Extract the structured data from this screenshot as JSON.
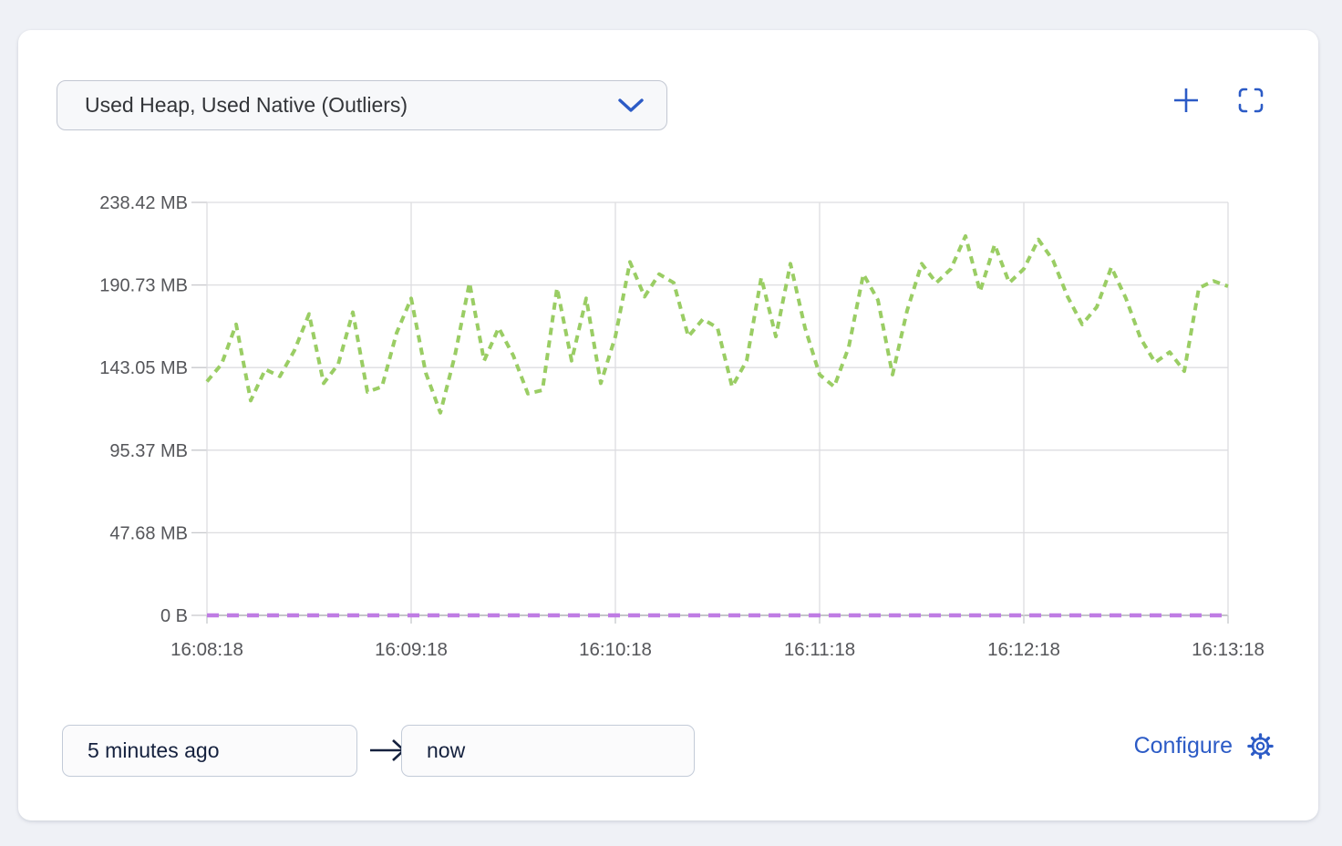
{
  "panel": {
    "metric_selector": {
      "value": "Used Heap, Used Native (Outliers)"
    },
    "actions": {
      "add_icon": "plus",
      "fullscreen_icon": "fullscreen-corners"
    },
    "time_range": {
      "from": "5 minutes ago",
      "to": "now"
    },
    "configure_label": "Configure"
  },
  "colors": {
    "accent_blue": "#2c5bc6",
    "heap_green": "#9acd64",
    "native_purple": "#bf7ce4",
    "grid_gray": "#dddde0",
    "axis_gray": "#b2b3b7",
    "tick_gray": "#c7c8cc",
    "tick_text": "#55565a",
    "navy_text": "#15213e"
  },
  "chart_data": {
    "type": "line",
    "title": "",
    "xlabel": "",
    "ylabel": "",
    "grid": true,
    "legend_position": "none",
    "ylim": [
      0,
      238.42
    ],
    "y_ticks": [
      "0 B",
      "47.68 MB",
      "95.37 MB",
      "143.05 MB",
      "190.73 MB",
      "238.42 MB"
    ],
    "y_tick_values_mb": [
      0,
      47.68,
      95.37,
      143.05,
      190.73,
      238.42
    ],
    "x_ticks": [
      "16:08:18",
      "16:09:18",
      "16:10:18",
      "16:11:18",
      "16:12:18",
      "16:13:18"
    ],
    "x_range_seconds": 300,
    "series": [
      {
        "name": "Used Heap (Outliers)",
        "unit": "MB",
        "color": "#9acd64",
        "line_style": "dashed",
        "dash": "8 6",
        "width": 4,
        "values": [
          135,
          145,
          168,
          124,
          142,
          138,
          153,
          174,
          134,
          145,
          175,
          129,
          132,
          163,
          183,
          140,
          117,
          150,
          192,
          147,
          166,
          150,
          128,
          130,
          189,
          147,
          183,
          134,
          161,
          204,
          184,
          197,
          192,
          161,
          171,
          166,
          132,
          147,
          195,
          161,
          203,
          166,
          139,
          132,
          155,
          197,
          182,
          139,
          176,
          203,
          192,
          200,
          219,
          187,
          214,
          192,
          200,
          217,
          205,
          184,
          168,
          178,
          201,
          183,
          160,
          146,
          152,
          141,
          189,
          193,
          190
        ]
      },
      {
        "name": "Used Native (Outliers)",
        "unit": "MB",
        "color": "#bf7ce4",
        "line_style": "dashed",
        "dash": "13 9",
        "width": 4.5,
        "values": [
          0,
          0
        ]
      }
    ]
  }
}
